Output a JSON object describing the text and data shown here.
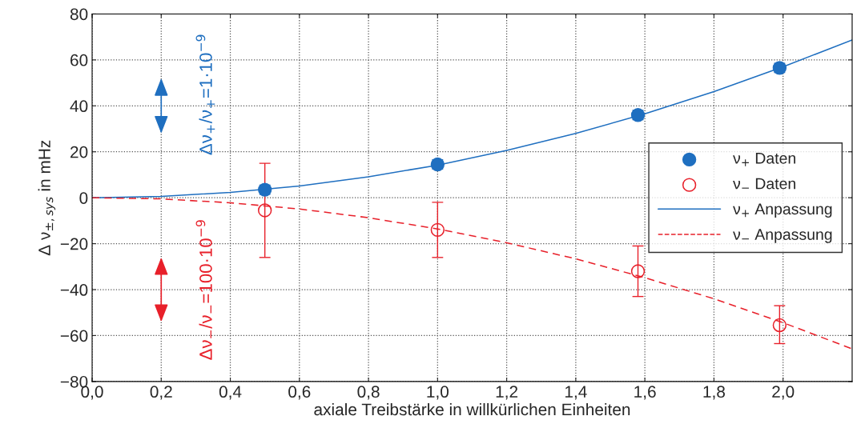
{
  "chart_data": {
    "type": "scatter",
    "xlabel": "axiale Treibstärke in willkürlichen Einheiten",
    "ylabel": "Δ ν$_{±,sys}$ in mHz",
    "annotations": [
      "Δν$_{+}$/ν$_{+}$=1·10$^{−9}$",
      "Δν$_{−}$/ν$_{−}$=100·10$^{−9}$"
    ],
    "series": [
      {
        "name": "ν$_{+}$ Daten",
        "color": "#1f6fc0",
        "marker": "circle",
        "x": [
          0.5,
          1.0,
          1.58,
          1.99
        ],
        "values": [
          3.5,
          14.5,
          36,
          56.5
        ],
        "errors": [
          2,
          2,
          2,
          2
        ]
      },
      {
        "name": "ν$_{−}$ Daten",
        "color": "#e8202a",
        "marker": "circle",
        "x": [
          0.5,
          1.0,
          1.58,
          1.99
        ],
        "values": [
          -5.5,
          -14,
          -32,
          -55.5
        ],
        "errors": [
          [
            -26,
            15
          ],
          [
            -26,
            -2
          ],
          [
            -43,
            -21
          ],
          [
            -63.5,
            -47
          ]
        ]
      },
      {
        "name": "ν$_{+}$ Anpassung",
        "type": "line",
        "color": "#1f6fc0",
        "line_style": "solid",
        "x": [
          0,
          0.2,
          0.4,
          0.6,
          0.8,
          1.0,
          1.2,
          1.4,
          1.6,
          1.8,
          2.0,
          2.2
        ],
        "values": [
          0,
          0.6,
          2.3,
          5.1,
          9.1,
          14.2,
          20.6,
          28,
          36.5,
          46.2,
          57,
          68.7
        ]
      },
      {
        "name": "ν$_{−}$ Anpassung",
        "type": "line",
        "color": "#e8202a",
        "line_style": "dashed",
        "x": [
          0,
          0.2,
          0.4,
          0.6,
          0.8,
          1.0,
          1.2,
          1.4,
          1.6,
          1.8,
          2.0,
          2.2
        ],
        "values": [
          0,
          -0.5,
          -2.2,
          -4.9,
          -8.7,
          -13.6,
          -19.6,
          -26.6,
          -34.8,
          -44,
          -54.4,
          -65.8
        ]
      }
    ],
    "xlim": [
      0,
      2.2
    ],
    "ylim": [
      -80,
      80
    ],
    "xticks": [
      {
        "value": 0,
        "label": "0,0"
      },
      {
        "value": 0.2,
        "label": "0,2"
      },
      {
        "value": 0.4,
        "label": "0,4"
      },
      {
        "value": 0.6,
        "label": "0,6"
      },
      {
        "value": 0.8,
        "label": "0,8"
      },
      {
        "value": 1.0,
        "label": "1,0"
      },
      {
        "value": 1.2,
        "label": "1,2"
      },
      {
        "value": 1.4,
        "label": "1,4"
      },
      {
        "value": 1.6,
        "label": "1,6"
      },
      {
        "value": 1.8,
        "label": "1,8"
      },
      {
        "value": 2.0,
        "label": "2,0"
      }
    ],
    "yticks": [
      {
        "value": -80,
        "label": "−80"
      },
      {
        "value": -60,
        "label": "−60"
      },
      {
        "value": -40,
        "label": "−40"
      },
      {
        "value": -20,
        "label": "−20"
      },
      0,
      20,
      40,
      60,
      80
    ],
    "grid": true,
    "legend": "center right"
  }
}
